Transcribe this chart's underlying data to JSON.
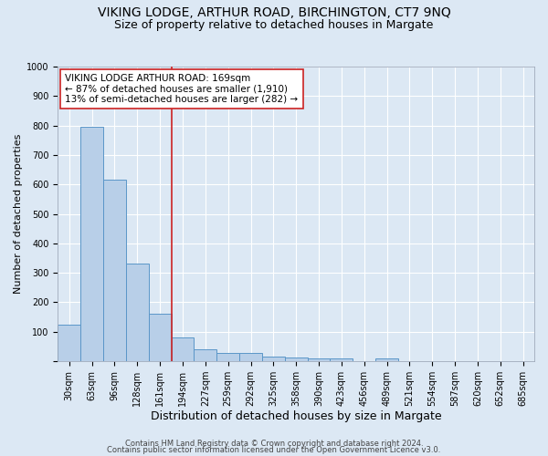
{
  "title1": "VIKING LODGE, ARTHUR ROAD, BIRCHINGTON, CT7 9NQ",
  "title2": "Size of property relative to detached houses in Margate",
  "xlabel": "Distribution of detached houses by size in Margate",
  "ylabel": "Number of detached properties",
  "footnote1": "Contains HM Land Registry data © Crown copyright and database right 2024.",
  "footnote2": "Contains public sector information licensed under the Open Government Licence v3.0.",
  "categories": [
    "30sqm",
    "63sqm",
    "96sqm",
    "128sqm",
    "161sqm",
    "194sqm",
    "227sqm",
    "259sqm",
    "292sqm",
    "325sqm",
    "358sqm",
    "390sqm",
    "423sqm",
    "456sqm",
    "489sqm",
    "521sqm",
    "554sqm",
    "587sqm",
    "620sqm",
    "652sqm",
    "685sqm"
  ],
  "values": [
    125,
    795,
    615,
    330,
    160,
    80,
    40,
    28,
    27,
    17,
    14,
    10,
    10,
    0,
    10,
    0,
    0,
    0,
    0,
    0,
    0
  ],
  "bar_color": "#b8cfe8",
  "bar_edge_color": "#5a96c8",
  "property_line_x": 4.5,
  "property_line_color": "#cc2222",
  "annotation_text": "VIKING LODGE ARTHUR ROAD: 169sqm\n← 87% of detached houses are smaller (1,910)\n13% of semi-detached houses are larger (282) →",
  "annotation_box_color": "#ffffff",
  "annotation_box_edge": "#cc2222",
  "ylim": [
    0,
    1000
  ],
  "yticks": [
    0,
    100,
    200,
    300,
    400,
    500,
    600,
    700,
    800,
    900,
    1000
  ],
  "bg_color": "#dce8f4",
  "grid_color": "#ffffff",
  "title1_fontsize": 10,
  "title2_fontsize": 9,
  "xlabel_fontsize": 9,
  "ylabel_fontsize": 8,
  "tick_fontsize": 7,
  "annot_fontsize": 7.5,
  "footnote_fontsize": 6
}
